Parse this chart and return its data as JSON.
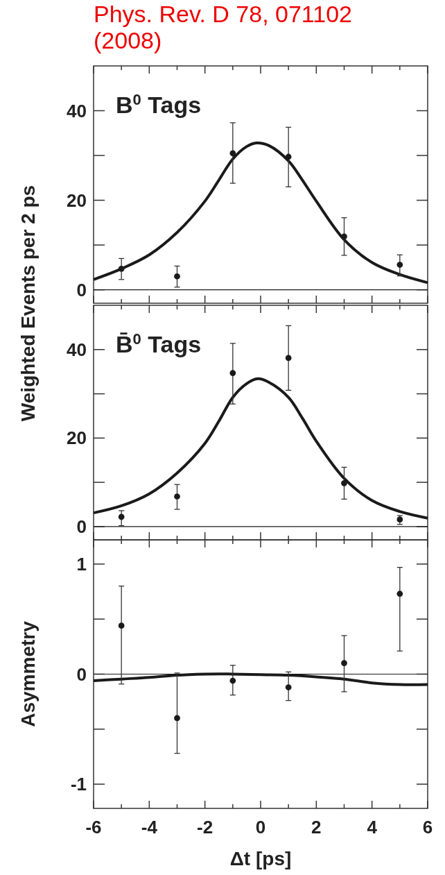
{
  "chart_data": [
    {
      "type": "scatter",
      "title": "Phys. Rev. D 78, 071102 (2008)",
      "ylabel": "Weighted Events per 2 ps",
      "annotations": [
        "B$^{0}$ Tags"
      ],
      "xlim": [
        -6,
        6
      ],
      "ylim": [
        -3,
        50
      ],
      "xticks": [
        -6,
        {
          "value": -5,
          "label": null
        },
        -4,
        {
          "value": -3,
          "label": null
        },
        -2,
        {
          "value": -1,
          "label": null
        },
        0,
        {
          "value": 1,
          "label": null
        },
        2,
        {
          "value": 3,
          "label": null
        },
        4,
        {
          "value": 5,
          "label": null
        },
        6
      ],
      "yticks": [
        0,
        {
          "value": 10,
          "label": null
        },
        20,
        {
          "value": 30,
          "label": null
        },
        40
      ],
      "tick_labels": "y",
      "grid": false,
      "ref_lines": [
        {
          "axis": "y",
          "value": 0,
          "color": "#1a1a1a"
        }
      ],
      "series": [
        {
          "type": "line",
          "color": "#1a1a1a",
          "line_style": "solid",
          "x": [
            -6,
            -5,
            -4,
            -3,
            -2,
            -1.5,
            -1,
            -0.5,
            -0.15,
            0.3,
            1,
            1.5,
            2,
            3,
            4,
            5,
            6
          ],
          "values": [
            2.3,
            4.7,
            7.8,
            12.8,
            19.8,
            24.5,
            29.2,
            32.0,
            32.8,
            32.2,
            28.8,
            24.5,
            19.8,
            11.2,
            6.1,
            3.4,
            1.6
          ]
        },
        {
          "type": "scatter",
          "color": "#1a1a1a",
          "marker": "circle",
          "x": [
            -5,
            -3,
            -1,
            1,
            3,
            5
          ],
          "values": [
            4.7,
            3.0,
            30.5,
            29.7,
            11.9,
            5.6
          ],
          "errors": [
            [
              2.3,
              7.0
            ],
            [
              0.6,
              5.3
            ],
            [
              23.8,
              37.3
            ],
            [
              23.0,
              36.3
            ],
            [
              7.7,
              16.1
            ],
            [
              3.1,
              7.8
            ]
          ]
        }
      ]
    },
    {
      "type": "scatter",
      "annotations": [
        "B̄$^{0}$ Tags"
      ],
      "xlim": [
        -6,
        6
      ],
      "ylim": [
        -3,
        50
      ],
      "xticks": [
        -6,
        {
          "value": -5,
          "label": null
        },
        -4,
        {
          "value": -3,
          "label": null
        },
        -2,
        {
          "value": -1,
          "label": null
        },
        0,
        {
          "value": 1,
          "label": null
        },
        2,
        {
          "value": 3,
          "label": null
        },
        4,
        {
          "value": 5,
          "label": null
        },
        6
      ],
      "yticks": [
        0,
        {
          "value": 10,
          "label": null
        },
        20,
        {
          "value": 30,
          "label": null
        },
        40
      ],
      "tick_labels": "y",
      "grid": false,
      "ref_lines": [
        {
          "axis": "y",
          "value": 0,
          "color": "#1a1a1a"
        }
      ],
      "series": [
        {
          "type": "line",
          "color": "#1a1a1a",
          "line_style": "solid",
          "x": [
            -6,
            -5,
            -4,
            -3,
            -2,
            -1.5,
            -1,
            -0.5,
            -0.1,
            0.3,
            1,
            1.5,
            2,
            3,
            4,
            5,
            6
          ],
          "values": [
            3.1,
            4.7,
            7.4,
            12.1,
            18.8,
            23.8,
            29.2,
            32.3,
            33.4,
            32.6,
            29.2,
            24.5,
            19.3,
            10.9,
            5.9,
            3.4,
            1.9
          ]
        },
        {
          "type": "scatter",
          "color": "#1a1a1a",
          "marker": "circle",
          "x": [
            -5,
            -3,
            -1,
            1,
            3,
            5
          ],
          "values": [
            2.2,
            6.8,
            34.7,
            38.1,
            9.8,
            1.6
          ],
          "errors": [
            [
              0.2,
              3.6
            ],
            [
              3.9,
              9.5
            ],
            [
              27.7,
              41.4
            ],
            [
              30.8,
              45.4
            ],
            [
              6.2,
              13.4
            ],
            [
              0.5,
              2.5
            ]
          ]
        }
      ]
    },
    {
      "type": "scatter",
      "xlabel": "Δt [ps]",
      "ylabel": "Asymmetry",
      "xlim": [
        -6,
        6
      ],
      "ylim": [
        -1.22,
        1.22
      ],
      "xticks": [
        -6,
        {
          "value": -5,
          "label": null
        },
        -4,
        {
          "value": -3,
          "label": null
        },
        -2,
        {
          "value": -1,
          "label": null
        },
        0,
        {
          "value": 1,
          "label": null
        },
        2,
        {
          "value": 3,
          "label": null
        },
        4,
        {
          "value": 5,
          "label": null
        },
        6
      ],
      "yticks": [
        -1,
        {
          "value": -0.5,
          "label": null
        },
        0,
        {
          "value": 0.5,
          "label": null
        },
        1
      ],
      "grid": false,
      "ref_lines": [
        {
          "axis": "y",
          "value": 0,
          "color": "#1a1a1a"
        }
      ],
      "series": [
        {
          "type": "line",
          "color": "#1a1a1a",
          "line_style": "solid",
          "x": [
            -6,
            -5,
            -4,
            -3,
            -2,
            -1.5,
            -1,
            0,
            1,
            2,
            3,
            4,
            5,
            6
          ],
          "values": [
            -0.06,
            -0.045,
            -0.03,
            -0.01,
            0.0,
            0.002,
            0.0,
            -0.005,
            -0.01,
            -0.025,
            -0.045,
            -0.08,
            -0.095,
            -0.095
          ]
        },
        {
          "type": "scatter",
          "color": "#1a1a1a",
          "marker": "circle",
          "x": [
            -5,
            -3,
            -1,
            1,
            3,
            5
          ],
          "values": [
            0.44,
            -0.4,
            -0.06,
            -0.12,
            0.1,
            0.73
          ],
          "errors": [
            [
              -0.09,
              0.8
            ],
            [
              -0.72,
              0.01
            ],
            [
              -0.19,
              0.08
            ],
            [
              -0.24,
              0.02
            ],
            [
              -0.16,
              0.35
            ],
            [
              0.21,
              0.97
            ]
          ]
        }
      ]
    }
  ]
}
